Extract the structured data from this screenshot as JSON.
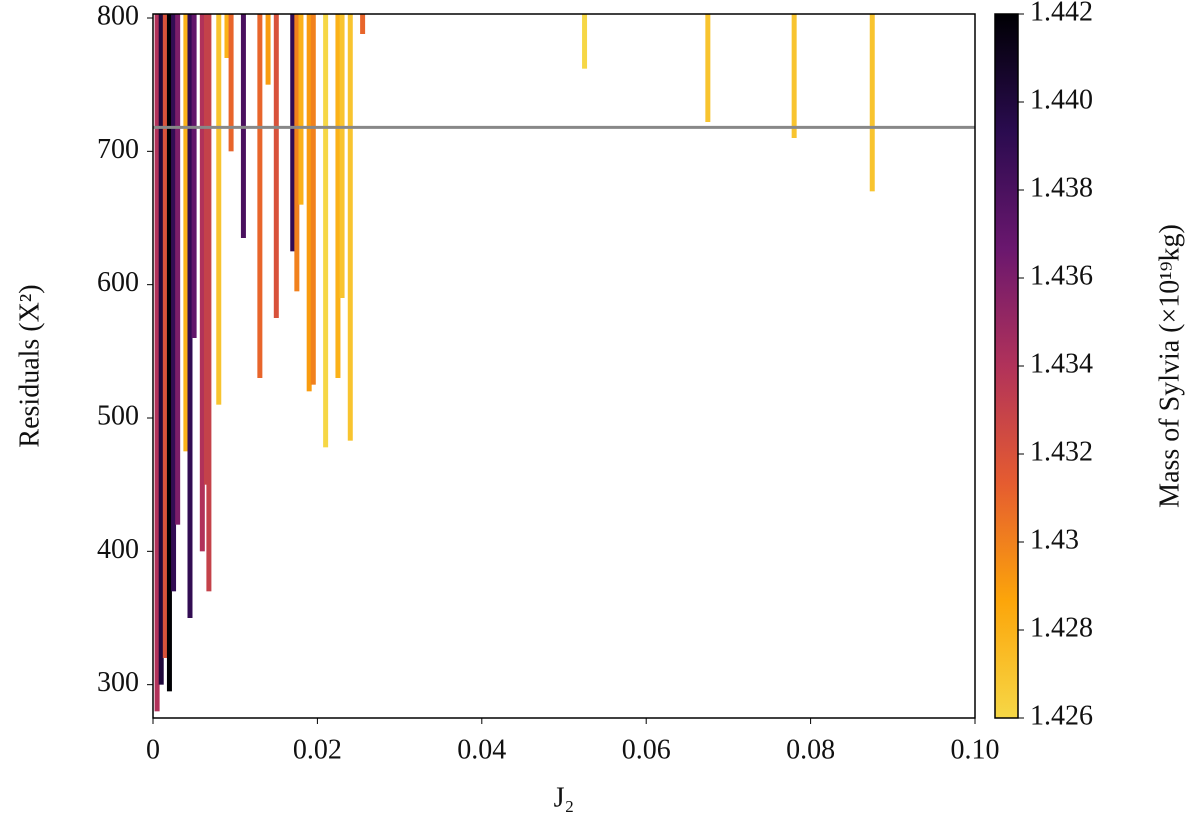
{
  "chart_data": {
    "type": "column-scatter",
    "x_label": "J₂",
    "y_label": "Residuals (X²)",
    "x": [
      0.0005,
      0.001,
      0.0015,
      0.002,
      0.0025,
      0.003,
      0.004,
      0.0045,
      0.005,
      0.006,
      0.0065,
      0.0068,
      0.008,
      0.009,
      0.0095,
      0.011,
      0.013,
      0.014,
      0.015,
      0.017,
      0.0175,
      0.018,
      0.019,
      0.0195,
      0.021,
      0.0225,
      0.023,
      0.024,
      0.0255,
      0.0525,
      0.0675,
      0.078,
      0.0875
    ],
    "values": [
      280,
      300,
      320,
      295,
      370,
      420,
      475,
      350,
      560,
      400,
      450,
      370,
      510,
      770,
      700,
      635,
      530,
      750,
      575,
      625,
      595,
      660,
      520,
      525,
      478,
      530,
      590,
      483,
      788,
      762,
      722,
      710,
      670
    ],
    "mass": [
      1.434,
      1.44,
      1.432,
      1.442,
      1.439,
      1.436,
      1.428,
      1.439,
      1.437,
      1.434,
      1.433,
      1.433,
      1.427,
      1.428,
      1.431,
      1.438,
      1.431,
      1.429,
      1.432,
      1.439,
      1.43,
      1.428,
      1.429,
      1.43,
      1.426,
      1.428,
      1.427,
      1.427,
      1.431,
      1.426,
      1.427,
      1.427,
      1.427
    ],
    "xlim": [
      0,
      0.1
    ],
    "xticks": [
      0,
      0.02,
      0.04,
      0.06,
      0.08,
      {
        "value": 0.1,
        "label": "0.10"
      }
    ],
    "ylim": [
      275,
      803
    ],
    "yticks": [
      300,
      400,
      500,
      600,
      700,
      800
    ],
    "hline": 718,
    "hline_color": "#888888",
    "colorbar": {
      "label": "Mass of Sylvia (×10¹⁹kg)",
      "lim": [
        1.426,
        1.442
      ],
      "ticks": [
        1.426,
        1.428,
        1.43,
        1.432,
        1.434,
        1.436,
        1.438,
        {
          "value": 1.44,
          "label": "1.440"
        },
        1.442
      ],
      "colors": [
        "#f6d746",
        "#fca50a",
        "#e55c30",
        "#b1325a",
        "#6a176e",
        "#2a0b4f",
        "#000004"
      ]
    }
  }
}
